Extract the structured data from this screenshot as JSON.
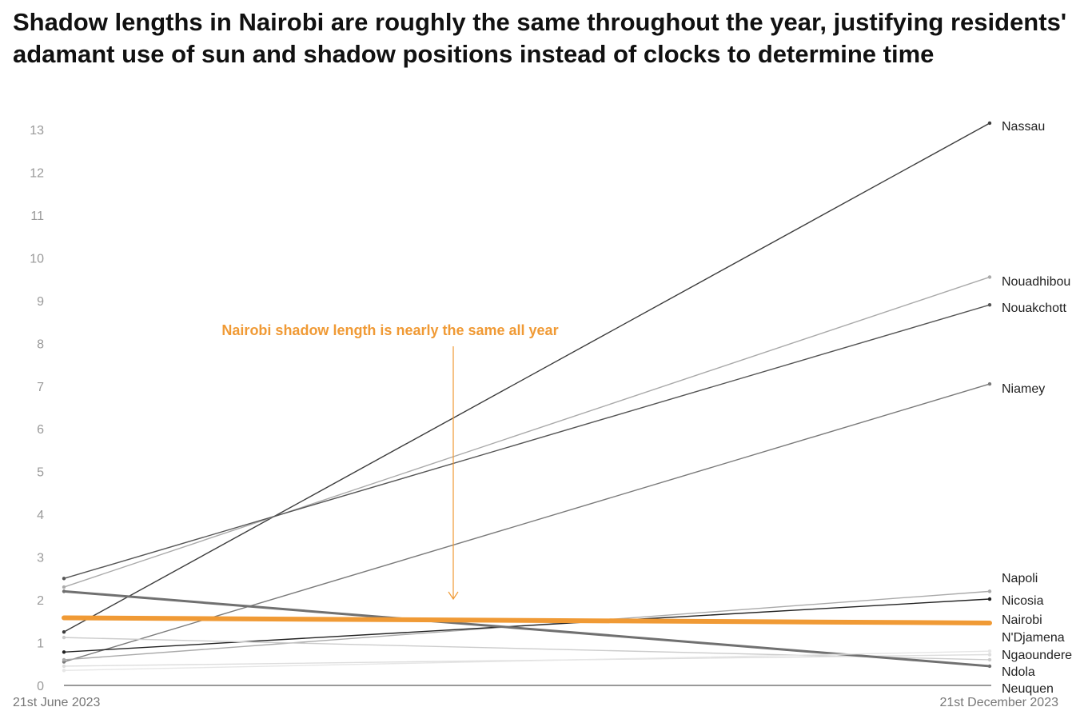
{
  "chart_data": {
    "type": "line",
    "title": "Shadow lengths in Nairobi are roughly the same throughout the year, justifying residents' adamant use of sun and shadow positions instead of clocks to determine time",
    "categories": [
      "21st June 2023",
      "21st December 2023"
    ],
    "ylim": [
      0,
      13
    ],
    "yticks": [
      0,
      1,
      2,
      3,
      4,
      5,
      6,
      7,
      8,
      9,
      10,
      11,
      12,
      13
    ],
    "grid": false,
    "highlight_color": "#f09a35",
    "annotation": "Nairobi shadow length is nearly the same all year",
    "series": [
      {
        "name": "Nassau",
        "values": [
          1.25,
          13.15
        ],
        "color": "#3d3d3d"
      },
      {
        "name": "Nouadhibou",
        "values": [
          2.3,
          9.55
        ],
        "color": "#aaaaaa"
      },
      {
        "name": "Nouakchott",
        "values": [
          2.5,
          8.9
        ],
        "color": "#555555"
      },
      {
        "name": "Niamey",
        "values": [
          0.55,
          7.05
        ],
        "color": "#7a7a7a"
      },
      {
        "name": "Napoli",
        "values": [
          0.6,
          2.2
        ],
        "color": "#aaaaaa"
      },
      {
        "name": "Nicosia",
        "values": [
          0.78,
          2.02
        ],
        "color": "#222222"
      },
      {
        "name": "Nairobi",
        "values": [
          1.58,
          1.46
        ],
        "color": "#f09a35"
      },
      {
        "name": "N'Djamena",
        "values": [
          1.12,
          0.6
        ],
        "color": "#cccccc"
      },
      {
        "name": "Ngaoundere",
        "values": [
          0.45,
          0.72
        ],
        "color": "#dddddd"
      },
      {
        "name": "Ndola",
        "values": [
          2.2,
          0.45
        ],
        "color": "#707070"
      },
      {
        "name": "Neuquen",
        "values": [
          0.35,
          0.8
        ],
        "color": "#e6e6e6"
      }
    ]
  }
}
